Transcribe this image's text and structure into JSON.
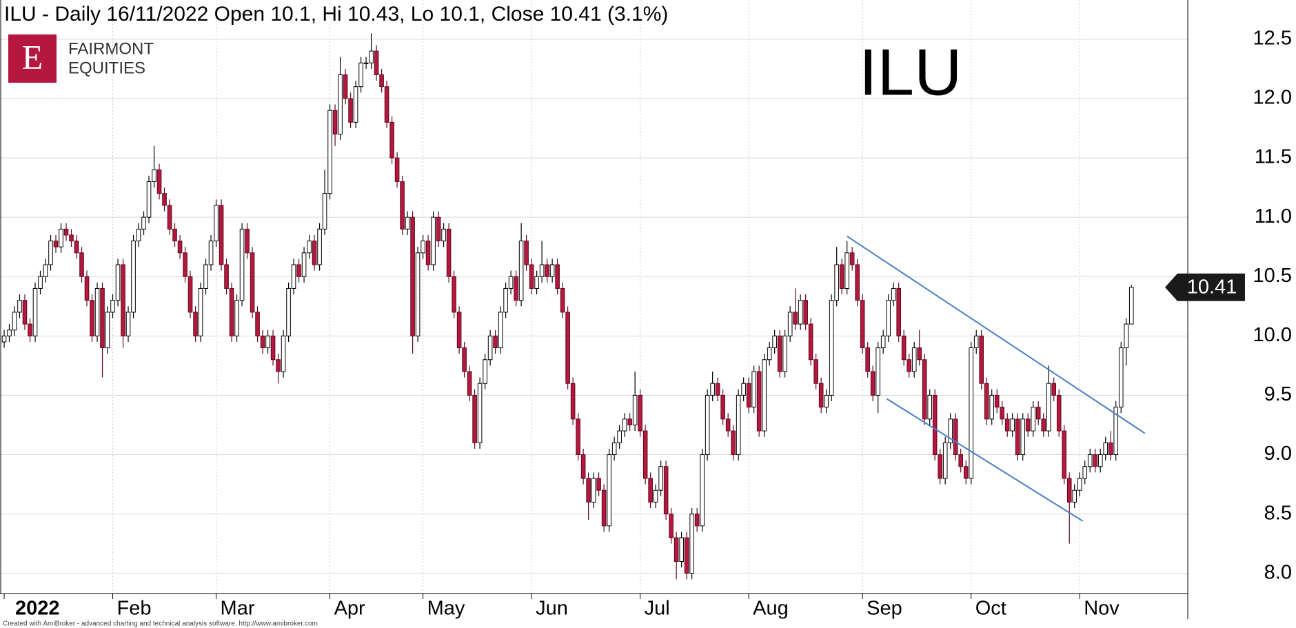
{
  "chart_data": {
    "type": "candlestick",
    "title": "ILU - Daily 16/11/2022 Open 10.1, Hi 10.43, Lo 10.1, Close 10.41 (3.1%)",
    "watermark": "ILU",
    "up_color": "#ffffff",
    "down_color": "#b5173f",
    "line_color": "#4a7ec2",
    "grid": true,
    "xlim": [
      -0.8,
      228.9
    ],
    "ylim": [
      7.83,
      12.83
    ],
    "yticks": [
      {
        "value": 8.0,
        "label": "8.0"
      },
      8.5,
      {
        "value": 9.0,
        "label": "9.0"
      },
      9.5,
      {
        "value": 10.0,
        "label": "10.0"
      },
      10.5,
      {
        "value": 11.0,
        "label": "11.0"
      },
      11.5,
      {
        "value": 12.0,
        "label": "12.0"
      },
      12.5
    ],
    "xticks": [
      {
        "value": 0,
        "label": "2022"
      },
      {
        "value": 21,
        "label": "Feb"
      },
      {
        "value": 41,
        "label": "Mar"
      },
      {
        "value": 63,
        "label": "Apr"
      },
      {
        "value": 81,
        "label": "May"
      },
      {
        "value": 102,
        "label": "Jun"
      },
      {
        "value": 123,
        "label": "Jul"
      },
      {
        "value": 144,
        "label": "Aug"
      },
      {
        "value": 166,
        "label": "Sep"
      },
      {
        "value": 187,
        "label": "Oct"
      },
      {
        "value": 208,
        "label": "Nov"
      }
    ],
    "trendlines": [
      {
        "x": [
          163,
          220.6
        ],
        "y": [
          10.84,
          9.18
        ]
      },
      {
        "x": [
          170.7,
          208.6
        ],
        "y": [
          9.47,
          8.44
        ]
      }
    ],
    "ohlc": [
      [
        9.95,
        10.05,
        9.9,
        10.0
      ],
      [
        10.0,
        10.1,
        9.95,
        10.05
      ],
      [
        10.05,
        10.25,
        10.0,
        10.2
      ],
      [
        10.2,
        10.35,
        10.15,
        10.3
      ],
      [
        10.3,
        10.35,
        10.05,
        10.1
      ],
      [
        10.1,
        10.15,
        9.95,
        10.0
      ],
      [
        10.0,
        10.45,
        9.95,
        10.4
      ],
      [
        10.4,
        10.55,
        10.35,
        10.5
      ],
      [
        10.5,
        10.65,
        10.45,
        10.6
      ],
      [
        10.6,
        10.85,
        10.55,
        10.8
      ],
      [
        10.8,
        10.85,
        10.7,
        10.75
      ],
      [
        10.75,
        10.95,
        10.7,
        10.9
      ],
      [
        10.9,
        10.95,
        10.8,
        10.85
      ],
      [
        10.85,
        10.9,
        10.75,
        10.8
      ],
      [
        10.8,
        10.85,
        10.65,
        10.7
      ],
      [
        10.7,
        10.75,
        10.45,
        10.5
      ],
      [
        10.5,
        10.55,
        10.25,
        10.3
      ],
      [
        10.3,
        10.35,
        9.95,
        10.0
      ],
      [
        10.0,
        10.45,
        9.95,
        10.4
      ],
      [
        10.4,
        10.45,
        9.65,
        9.9
      ],
      [
        9.9,
        10.25,
        9.85,
        10.2
      ],
      [
        10.2,
        10.35,
        10.15,
        10.3
      ],
      [
        10.3,
        10.65,
        10.25,
        10.6
      ],
      [
        10.6,
        10.65,
        9.9,
        10.0
      ],
      [
        10.0,
        10.25,
        9.95,
        10.2
      ],
      [
        10.2,
        10.85,
        10.15,
        10.8
      ],
      [
        10.8,
        10.95,
        10.75,
        10.9
      ],
      [
        10.9,
        11.05,
        10.85,
        11.0
      ],
      [
        11.0,
        11.35,
        10.95,
        11.3
      ],
      [
        11.3,
        11.6,
        11.25,
        11.4
      ],
      [
        11.4,
        11.45,
        11.15,
        11.2
      ],
      [
        11.2,
        11.25,
        11.05,
        11.1
      ],
      [
        11.1,
        11.15,
        10.85,
        10.9
      ],
      [
        10.9,
        10.95,
        10.75,
        10.8
      ],
      [
        10.8,
        10.85,
        10.65,
        10.7
      ],
      [
        10.7,
        10.75,
        10.45,
        10.5
      ],
      [
        10.5,
        10.55,
        10.15,
        10.2
      ],
      [
        10.2,
        10.25,
        9.95,
        10.0
      ],
      [
        10.0,
        10.45,
        9.95,
        10.4
      ],
      [
        10.4,
        10.65,
        10.35,
        10.6
      ],
      [
        10.6,
        10.85,
        10.55,
        10.8
      ],
      [
        10.8,
        11.15,
        10.75,
        11.1
      ],
      [
        11.1,
        11.15,
        10.55,
        10.6
      ],
      [
        10.6,
        10.65,
        10.35,
        10.4
      ],
      [
        10.4,
        10.45,
        9.95,
        10.0
      ],
      [
        10.0,
        10.35,
        9.95,
        10.3
      ],
      [
        10.3,
        10.95,
        10.25,
        10.9
      ],
      [
        10.9,
        10.95,
        10.65,
        10.7
      ],
      [
        10.7,
        10.75,
        10.15,
        10.2
      ],
      [
        10.2,
        10.25,
        9.95,
        10.0
      ],
      [
        10.0,
        10.05,
        9.85,
        9.9
      ],
      [
        9.9,
        10.05,
        9.85,
        10.0
      ],
      [
        10.0,
        10.05,
        9.75,
        9.8
      ],
      [
        9.8,
        9.85,
        9.6,
        9.7
      ],
      [
        9.7,
        10.05,
        9.65,
        10.0
      ],
      [
        10.0,
        10.45,
        9.95,
        10.4
      ],
      [
        10.4,
        10.65,
        10.35,
        10.6
      ],
      [
        10.6,
        10.65,
        10.45,
        10.5
      ],
      [
        10.5,
        10.75,
        10.45,
        10.7
      ],
      [
        10.7,
        10.85,
        10.65,
        10.8
      ],
      [
        10.8,
        10.85,
        10.55,
        10.6
      ],
      [
        10.6,
        10.95,
        10.55,
        10.9
      ],
      [
        10.9,
        11.4,
        10.85,
        11.2
      ],
      [
        11.2,
        11.95,
        11.15,
        11.9
      ],
      [
        11.9,
        11.95,
        11.6,
        11.7
      ],
      [
        11.7,
        12.35,
        11.65,
        12.2
      ],
      [
        12.2,
        12.25,
        11.95,
        12.0
      ],
      [
        12.0,
        12.05,
        11.75,
        11.8
      ],
      [
        11.8,
        12.15,
        11.75,
        12.1
      ],
      [
        12.1,
        12.35,
        12.05,
        12.3
      ],
      [
        12.3,
        12.35,
        12.25,
        12.3
      ],
      [
        12.3,
        12.55,
        12.25,
        12.4
      ],
      [
        12.4,
        12.45,
        12.15,
        12.2
      ],
      [
        12.2,
        12.25,
        12.05,
        12.1
      ],
      [
        12.1,
        12.15,
        11.75,
        11.8
      ],
      [
        11.8,
        11.85,
        11.45,
        11.5
      ],
      [
        11.5,
        11.55,
        11.25,
        11.3
      ],
      [
        11.3,
        11.35,
        10.85,
        10.9
      ],
      [
        10.9,
        11.05,
        10.85,
        11.0
      ],
      [
        11.0,
        11.05,
        9.85,
        10.0
      ],
      [
        10.0,
        10.75,
        9.95,
        10.7
      ],
      [
        10.7,
        10.85,
        10.65,
        10.8
      ],
      [
        10.8,
        10.85,
        10.55,
        10.6
      ],
      [
        10.6,
        11.05,
        10.55,
        11.0
      ],
      [
        11.0,
        11.05,
        10.75,
        10.8
      ],
      [
        10.8,
        10.95,
        10.75,
        10.9
      ],
      [
        10.9,
        10.95,
        10.45,
        10.5
      ],
      [
        10.5,
        10.55,
        10.15,
        10.2
      ],
      [
        10.2,
        10.25,
        9.85,
        9.9
      ],
      [
        9.9,
        9.95,
        9.65,
        9.7
      ],
      [
        9.7,
        9.75,
        9.45,
        9.5
      ],
      [
        9.5,
        9.55,
        9.05,
        9.1
      ],
      [
        9.1,
        9.65,
        9.05,
        9.6
      ],
      [
        9.6,
        9.85,
        9.55,
        9.8
      ],
      [
        9.8,
        10.05,
        9.75,
        10.0
      ],
      [
        10.0,
        10.05,
        9.85,
        9.9
      ],
      [
        9.9,
        10.25,
        9.85,
        10.2
      ],
      [
        10.2,
        10.45,
        10.15,
        10.4
      ],
      [
        10.4,
        10.55,
        10.35,
        10.5
      ],
      [
        10.5,
        10.55,
        10.25,
        10.3
      ],
      [
        10.3,
        10.95,
        10.25,
        10.8
      ],
      [
        10.8,
        10.85,
        10.55,
        10.6
      ],
      [
        10.6,
        10.65,
        10.35,
        10.4
      ],
      [
        10.4,
        10.55,
        10.35,
        10.5
      ],
      [
        10.5,
        10.8,
        10.45,
        10.6
      ],
      [
        10.6,
        10.65,
        10.45,
        10.5
      ],
      [
        10.5,
        10.65,
        10.45,
        10.6
      ],
      [
        10.6,
        10.65,
        10.35,
        10.4
      ],
      [
        10.4,
        10.45,
        10.15,
        10.2
      ],
      [
        10.2,
        10.25,
        9.55,
        9.6
      ],
      [
        9.6,
        9.65,
        9.25,
        9.3
      ],
      [
        9.3,
        9.35,
        8.95,
        9.0
      ],
      [
        9.0,
        9.05,
        8.75,
        8.8
      ],
      [
        8.8,
        8.85,
        8.45,
        8.6
      ],
      [
        8.6,
        8.85,
        8.55,
        8.8
      ],
      [
        8.8,
        8.85,
        8.65,
        8.7
      ],
      [
        8.7,
        8.75,
        8.35,
        8.4
      ],
      [
        8.4,
        9.05,
        8.35,
        9.0
      ],
      [
        9.0,
        9.15,
        8.95,
        9.1
      ],
      [
        9.1,
        9.25,
        9.05,
        9.2
      ],
      [
        9.2,
        9.35,
        9.15,
        9.3
      ],
      [
        9.3,
        9.35,
        9.2,
        9.25
      ],
      [
        9.25,
        9.7,
        9.2,
        9.5
      ],
      [
        9.5,
        9.55,
        9.15,
        9.2
      ],
      [
        9.2,
        9.25,
        8.75,
        8.8
      ],
      [
        8.8,
        8.85,
        8.55,
        8.6
      ],
      [
        8.6,
        8.75,
        8.55,
        8.7
      ],
      [
        8.7,
        8.95,
        8.65,
        8.9
      ],
      [
        8.9,
        8.95,
        8.45,
        8.5
      ],
      [
        8.5,
        8.55,
        8.25,
        8.3
      ],
      [
        8.3,
        8.35,
        7.95,
        8.1
      ],
      [
        8.1,
        8.35,
        8.05,
        8.3
      ],
      [
        8.3,
        8.35,
        7.95,
        8.0
      ],
      [
        8.0,
        8.55,
        7.95,
        8.5
      ],
      [
        8.5,
        8.55,
        8.35,
        8.4
      ],
      [
        8.4,
        9.05,
        8.35,
        9.0
      ],
      [
        9.0,
        9.55,
        8.95,
        9.5
      ],
      [
        9.5,
        9.7,
        9.45,
        9.6
      ],
      [
        9.6,
        9.65,
        9.45,
        9.5
      ],
      [
        9.5,
        9.55,
        9.25,
        9.3
      ],
      [
        9.3,
        9.35,
        9.15,
        9.2
      ],
      [
        9.2,
        9.25,
        8.95,
        9.0
      ],
      [
        9.0,
        9.55,
        8.95,
        9.5
      ],
      [
        9.5,
        9.65,
        9.45,
        9.6
      ],
      [
        9.6,
        9.65,
        9.35,
        9.4
      ],
      [
        9.4,
        9.75,
        9.35,
        9.7
      ],
      [
        9.7,
        9.75,
        9.15,
        9.2
      ],
      [
        9.2,
        9.85,
        9.15,
        9.8
      ],
      [
        9.8,
        9.95,
        9.75,
        9.9
      ],
      [
        9.9,
        10.05,
        9.85,
        10.0
      ],
      [
        10.0,
        10.05,
        9.65,
        9.7
      ],
      [
        9.7,
        10.05,
        9.65,
        10.0
      ],
      [
        10.0,
        10.25,
        9.95,
        10.2
      ],
      [
        10.2,
        10.4,
        10.05,
        10.1
      ],
      [
        10.1,
        10.35,
        10.05,
        10.3
      ],
      [
        10.3,
        10.35,
        10.05,
        10.1
      ],
      [
        10.1,
        10.15,
        9.75,
        9.8
      ],
      [
        9.8,
        9.85,
        9.55,
        9.6
      ],
      [
        9.6,
        9.65,
        9.35,
        9.4
      ],
      [
        9.4,
        9.55,
        9.35,
        9.5
      ],
      [
        9.5,
        10.35,
        9.45,
        10.3
      ],
      [
        10.3,
        10.75,
        10.25,
        10.6
      ],
      [
        10.6,
        10.65,
        10.35,
        10.4
      ],
      [
        10.4,
        10.8,
        10.35,
        10.7
      ],
      [
        10.7,
        10.75,
        10.55,
        10.6
      ],
      [
        10.6,
        10.65,
        10.25,
        10.3
      ],
      [
        10.3,
        10.35,
        9.85,
        9.9
      ],
      [
        9.9,
        9.95,
        9.65,
        9.7
      ],
      [
        9.7,
        9.75,
        9.45,
        9.5
      ],
      [
        9.5,
        9.95,
        9.35,
        9.9
      ],
      [
        9.9,
        10.05,
        9.85,
        10.0
      ],
      [
        10.0,
        10.35,
        9.95,
        10.3
      ],
      [
        10.3,
        10.45,
        10.25,
        10.4
      ],
      [
        10.4,
        10.45,
        9.95,
        10.0
      ],
      [
        10.0,
        10.05,
        9.75,
        9.8
      ],
      [
        9.8,
        9.85,
        9.65,
        9.7
      ],
      [
        9.7,
        9.95,
        9.65,
        9.9
      ],
      [
        9.9,
        10.05,
        9.75,
        9.8
      ],
      [
        9.8,
        9.85,
        9.25,
        9.3
      ],
      [
        9.3,
        9.55,
        9.25,
        9.5
      ],
      [
        9.5,
        9.55,
        8.95,
        9.0
      ],
      [
        9.0,
        9.05,
        8.75,
        8.8
      ],
      [
        8.8,
        9.15,
        8.75,
        9.1
      ],
      [
        9.1,
        9.35,
        9.05,
        9.3
      ],
      [
        9.3,
        9.35,
        8.95,
        9.0
      ],
      [
        9.0,
        9.05,
        8.85,
        8.9
      ],
      [
        8.9,
        8.95,
        8.75,
        8.8
      ],
      [
        8.8,
        9.95,
        8.75,
        9.9
      ],
      [
        9.9,
        10.05,
        9.85,
        10.0
      ],
      [
        10.0,
        10.05,
        9.55,
        9.6
      ],
      [
        9.6,
        9.65,
        9.25,
        9.3
      ],
      [
        9.3,
        9.55,
        9.25,
        9.5
      ],
      [
        9.5,
        9.55,
        9.35,
        9.4
      ],
      [
        9.4,
        9.45,
        9.25,
        9.3
      ],
      [
        9.3,
        9.35,
        9.15,
        9.2
      ],
      [
        9.2,
        9.35,
        9.15,
        9.3
      ],
      [
        9.3,
        9.35,
        8.95,
        9.0
      ],
      [
        9.0,
        9.35,
        8.95,
        9.3
      ],
      [
        9.3,
        9.35,
        9.15,
        9.2
      ],
      [
        9.2,
        9.45,
        9.15,
        9.4
      ],
      [
        9.4,
        9.45,
        9.25,
        9.3
      ],
      [
        9.3,
        9.35,
        9.15,
        9.2
      ],
      [
        9.2,
        9.75,
        9.15,
        9.6
      ],
      [
        9.6,
        9.65,
        9.45,
        9.5
      ],
      [
        9.5,
        9.55,
        9.15,
        9.2
      ],
      [
        9.2,
        9.25,
        8.75,
        8.8
      ],
      [
        8.8,
        8.85,
        8.25,
        8.6
      ],
      [
        8.6,
        8.75,
        8.55,
        8.7
      ],
      [
        8.7,
        8.85,
        8.65,
        8.8
      ],
      [
        8.8,
        8.95,
        8.75,
        8.9
      ],
      [
        8.9,
        9.05,
        8.85,
        9.0
      ],
      [
        9.0,
        9.05,
        8.85,
        8.9
      ],
      [
        8.9,
        9.05,
        8.85,
        9.0
      ],
      [
        9.0,
        9.15,
        8.95,
        9.1
      ],
      [
        9.1,
        9.2,
        8.95,
        9.0
      ],
      [
        9.0,
        9.45,
        8.95,
        9.4
      ],
      [
        9.4,
        9.95,
        9.35,
        9.9
      ],
      [
        9.9,
        10.15,
        9.75,
        10.1
      ],
      [
        10.1,
        10.43,
        10.1,
        10.41
      ]
    ]
  },
  "branding": {
    "letter": "E",
    "line1": "FAIRMONT",
    "line2": "EQUITIES"
  },
  "credit": "Created with AmiBroker - advanced charting and technical analysis software. http://www.amibroker.com"
}
